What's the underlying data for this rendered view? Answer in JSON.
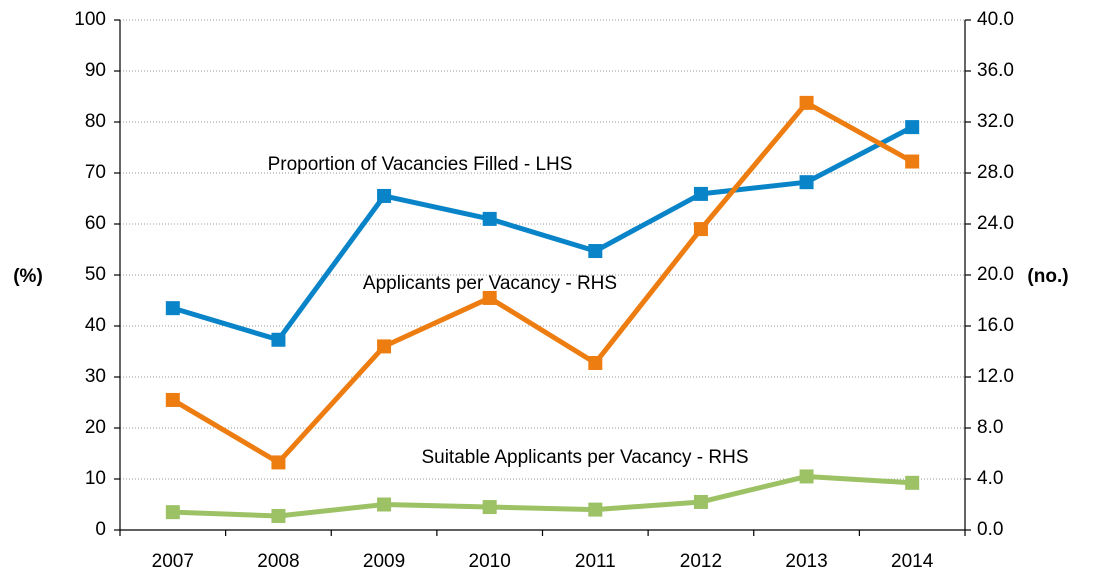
{
  "chart_data": {
    "type": "line",
    "categories": [
      "2007",
      "2008",
      "2009",
      "2010",
      "2011",
      "2012",
      "2013",
      "2014"
    ],
    "series": [
      {
        "name": "Proportion of Vacancies Filled - LHS",
        "color": "#0a84c8",
        "values": [
          43.5,
          37.3,
          65.5,
          61,
          54.7,
          65.9,
          68.2,
          79
        ]
      },
      {
        "name": "Applicants per Vacancy - RHS",
        "color": "#ee7d11",
        "axis": "y2",
        "values": [
          10.2,
          5.3,
          14.4,
          18.2,
          13.1,
          23.6,
          33.5,
          28.9
        ]
      },
      {
        "name": "Suitable Applicants per Vacancy - RHS",
        "color": "#9dc266",
        "axis": "y2",
        "values": [
          1.4,
          1.1,
          2.0,
          1.8,
          1.6,
          2.2,
          4.2,
          3.7
        ]
      }
    ],
    "ylabel": "(%)",
    "y2label": "(no.)",
    "ylim": [
      0,
      100
    ],
    "yticks": [
      0,
      10,
      20,
      30,
      40,
      50,
      60,
      70,
      80,
      90,
      100
    ],
    "y2lim": [
      0,
      40
    ],
    "y2ticks": [
      {
        "value": 0,
        "label": "0.0"
      },
      {
        "value": 4,
        "label": "4.0"
      },
      {
        "value": 8,
        "label": "8.0"
      },
      {
        "value": 12,
        "label": "12.0"
      },
      {
        "value": 16,
        "label": "16.0"
      },
      {
        "value": 20,
        "label": "20.0"
      },
      {
        "value": 24,
        "label": "24.0"
      },
      {
        "value": 28,
        "label": "28.0"
      },
      {
        "value": 32,
        "label": "32.0"
      },
      {
        "value": 36,
        "label": "36.0"
      },
      {
        "value": 40,
        "label": "40.0"
      }
    ],
    "grid": true
  }
}
